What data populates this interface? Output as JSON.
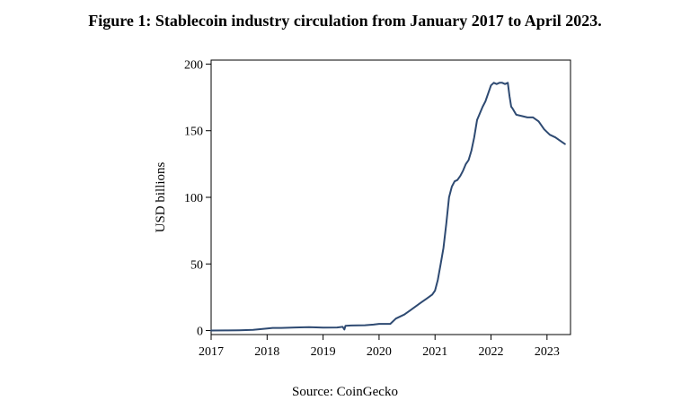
{
  "figure": {
    "title": "Figure 1: Stablecoin industry circulation from January 2017 to April 2023.",
    "source": "Source: CoinGecko"
  },
  "chart_data": {
    "type": "line",
    "title": "",
    "xlabel": "",
    "ylabel": "USD billions",
    "xlim": [
      2017,
      2023.42
    ],
    "ylim": [
      -3,
      203
    ],
    "x_ticks": [
      2017,
      2018,
      2019,
      2020,
      2021,
      2022,
      2023
    ],
    "y_ticks": [
      0,
      50,
      100,
      150,
      200
    ],
    "grid": false,
    "legend": "none",
    "line_color": "#2e4a72",
    "series": [
      {
        "x": [
          2017.0,
          2017.25,
          2017.5,
          2017.75,
          2018.0,
          2018.1,
          2018.25,
          2018.5,
          2018.75,
          2019.0,
          2019.25,
          2019.35,
          2019.38,
          2019.4,
          2019.5,
          2019.75,
          2019.9,
          2020.0,
          2020.1,
          2020.15,
          2020.2,
          2020.3,
          2020.45,
          2020.55,
          2020.65,
          2020.75,
          2020.85,
          2020.95,
          2021.0,
          2021.05,
          2021.1,
          2021.15,
          2021.2,
          2021.25,
          2021.3,
          2021.35,
          2021.4,
          2021.45,
          2021.5,
          2021.55,
          2021.6,
          2021.65,
          2021.7,
          2021.75,
          2021.8,
          2021.85,
          2021.9,
          2021.95,
          2022.0,
          2022.05,
          2022.1,
          2022.15,
          2022.2,
          2022.25,
          2022.3,
          2022.33,
          2022.36,
          2022.38,
          2022.45,
          2022.55,
          2022.65,
          2022.75,
          2022.85,
          2022.95,
          2023.05,
          2023.15,
          2023.25,
          2023.32
        ],
        "y": [
          0.0,
          0.1,
          0.2,
          0.5,
          1.5,
          2.0,
          2.0,
          2.3,
          2.5,
          2.2,
          2.3,
          2.8,
          0.8,
          3.5,
          3.8,
          4.0,
          4.5,
          5.0,
          5.0,
          5.0,
          5.0,
          9.0,
          12.0,
          15.0,
          18.0,
          21.0,
          24.0,
          27.0,
          30.0,
          38.0,
          50.0,
          62.0,
          80.0,
          100.0,
          108.0,
          112.0,
          113.0,
          116.0,
          120.0,
          125.0,
          128.0,
          135.0,
          145.0,
          158.0,
          163.0,
          168.0,
          172.0,
          178.0,
          184.0,
          186.0,
          185.0,
          186.0,
          186.0,
          185.0,
          186.0,
          176.0,
          168.0,
          167.0,
          162.0,
          161.0,
          160.0,
          160.0,
          157.0,
          151.0,
          147.0,
          145.0,
          142.0,
          140.0
        ]
      }
    ]
  }
}
